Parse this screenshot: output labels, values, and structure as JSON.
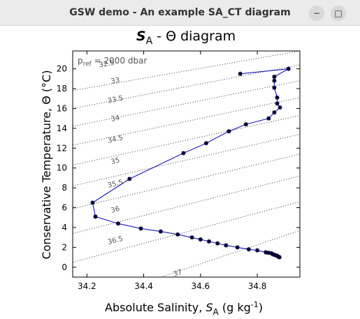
{
  "window": {
    "title": "GSW demo - An example SA_CT diagram",
    "minimize_glyph": "−",
    "maximize_glyph": "□",
    "close_glyph": "✕"
  },
  "chart_data": {
    "type": "line",
    "title_main": "S",
    "title_sub": "A",
    "title_rest": " - Θ  diagram",
    "xlabel_main": "Absolute Salinity, ",
    "xlabel_var": "S",
    "xlabel_sub": "A",
    "xlabel_units": " (g kg",
    "xlabel_sup": "-1",
    "xlabel_close": ")",
    "ylabel": "Conservative Temperature,  Θ (°C)",
    "annotation_main": "p",
    "annotation_sub": "ref",
    "annotation_rest": " = 2000 dbar",
    "xlim": [
      34.15,
      34.95
    ],
    "ylim": [
      -1,
      21.8
    ],
    "xticks": [
      34.2,
      34.4,
      34.6,
      34.8
    ],
    "xtick_labels": [
      "34.2",
      "34.4",
      "34.6",
      "34.8"
    ],
    "yticks": [
      0,
      2,
      4,
      6,
      8,
      10,
      12,
      14,
      16,
      18,
      20
    ],
    "ytick_labels": [
      "0",
      "2",
      "4",
      "6",
      "8",
      "10",
      "12",
      "14",
      "16",
      "18",
      "20"
    ],
    "line_color": "#0000bb",
    "marker_color": "#000033",
    "isopycnal_color": "#000000",
    "series": [
      {
        "x": [
          34.74,
          34.91,
          34.86,
          34.86,
          34.86,
          34.87,
          34.87,
          34.88,
          34.86,
          34.84,
          34.76,
          34.7,
          34.62,
          34.54,
          34.35,
          34.22,
          34.23,
          34.31,
          34.39,
          34.46,
          34.52,
          34.57,
          34.6,
          34.63,
          34.66,
          34.69,
          34.73,
          34.77,
          34.8,
          34.83,
          34.84,
          34.85,
          34.855,
          34.86,
          34.865,
          34.87,
          34.875,
          34.878
        ],
        "y": [
          19.5,
          20.0,
          19.2,
          18.8,
          18.1,
          17.1,
          16.5,
          16.1,
          15.6,
          15.0,
          14.4,
          13.7,
          12.5,
          11.5,
          8.9,
          6.5,
          5.1,
          4.4,
          3.9,
          3.6,
          3.3,
          3.0,
          2.8,
          2.6,
          2.4,
          2.2,
          2.0,
          1.8,
          1.7,
          1.5,
          1.45,
          1.4,
          1.3,
          1.25,
          1.2,
          1.15,
          1.05,
          1.0
        ]
      }
    ],
    "isopycnals": [
      {
        "sigma": 32.5,
        "label": "32.5",
        "x1": 34.15,
        "y1": 17.8,
        "x2": 34.95,
        "y2": 21.8,
        "lx": 34.27,
        "ly": 20.5
      },
      {
        "sigma": 33,
        "label": "33",
        "x1": 34.15,
        "y1": 16.0,
        "x2": 34.95,
        "y2": 20.4,
        "lx": 34.3,
        "ly": 18.8
      },
      {
        "sigma": 33.5,
        "label": "33.5",
        "x1": 34.15,
        "y1": 14.2,
        "x2": 34.95,
        "y2": 18.8,
        "lx": 34.3,
        "ly": 16.9
      },
      {
        "sigma": 34,
        "label": "34",
        "x1": 34.15,
        "y1": 12.3,
        "x2": 34.95,
        "y2": 17.1,
        "lx": 34.3,
        "ly": 15.0
      },
      {
        "sigma": 34.5,
        "label": "34.5",
        "x1": 34.15,
        "y1": 10.3,
        "x2": 34.95,
        "y2": 15.3,
        "lx": 34.3,
        "ly": 12.9
      },
      {
        "sigma": 35,
        "label": "35",
        "x1": 34.15,
        "y1": 8.2,
        "x2": 34.95,
        "y2": 13.4,
        "lx": 34.3,
        "ly": 10.7
      },
      {
        "sigma": 35.5,
        "label": "35.5",
        "x1": 34.15,
        "y1": 5.9,
        "x2": 34.95,
        "y2": 11.4,
        "lx": 34.3,
        "ly": 8.4
      },
      {
        "sigma": 36,
        "label": "36",
        "x1": 34.15,
        "y1": 3.4,
        "x2": 34.95,
        "y2": 9.2,
        "lx": 34.3,
        "ly": 5.8
      },
      {
        "sigma": 36.5,
        "label": "36.5",
        "x1": 34.15,
        "y1": 0.5,
        "x2": 34.95,
        "y2": 6.6,
        "lx": 34.3,
        "ly": 2.7
      },
      {
        "sigma": 37,
        "label": "37",
        "x1": 34.46,
        "y1": -1.0,
        "x2": 34.95,
        "y2": 3.7,
        "lx": 34.52,
        "ly": -0.6
      }
    ]
  }
}
